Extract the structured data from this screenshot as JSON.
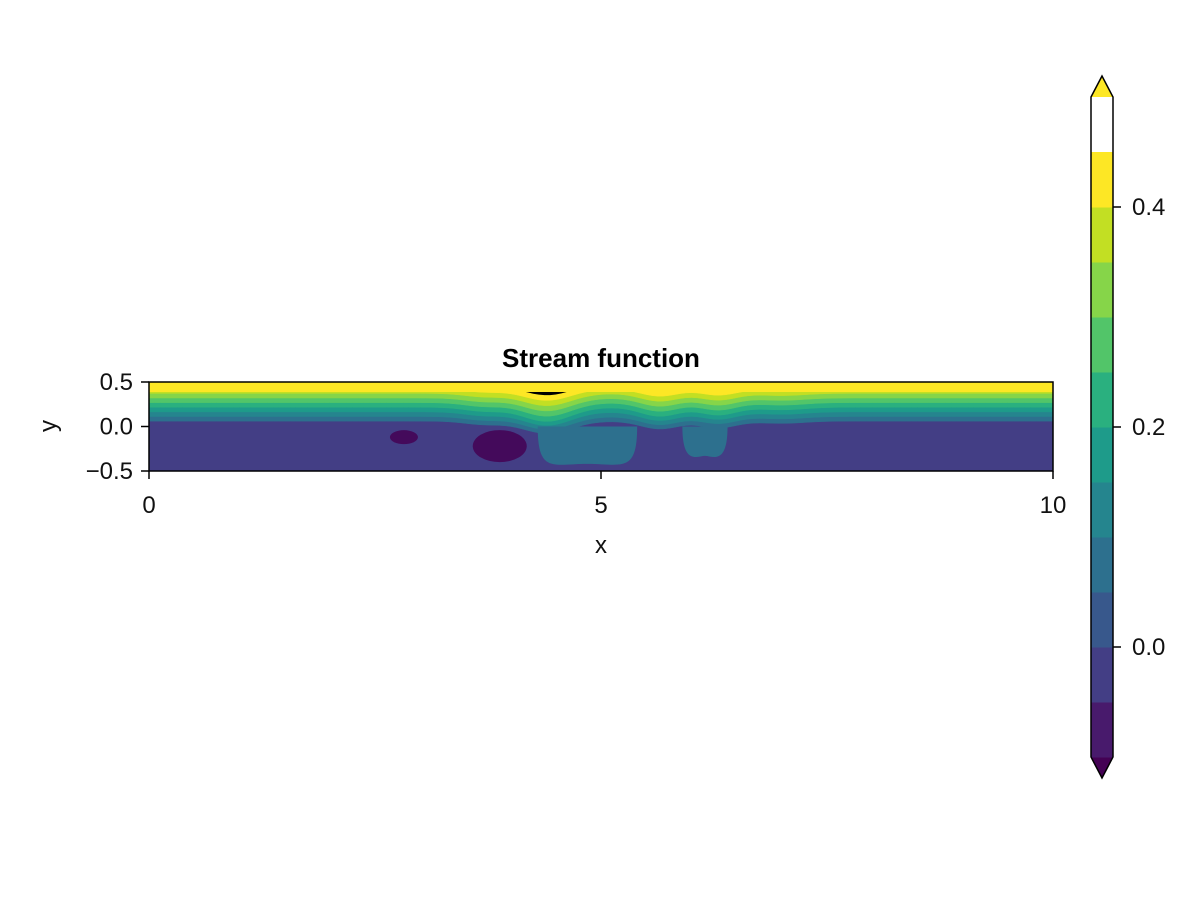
{
  "chart_data": {
    "type": "contourf",
    "title": "Stream function",
    "xlabel": "x",
    "ylabel": "y",
    "xlim": [
      0,
      10
    ],
    "ylim": [
      -0.5,
      0.5
    ],
    "x_ticks": [
      0,
      5,
      10
    ],
    "x_tick_labels": [
      "0",
      "5",
      "10"
    ],
    "y_ticks": [
      -0.5,
      0.0,
      0.5
    ],
    "y_tick_labels": [
      "−0.5",
      "0.0",
      "0.5"
    ],
    "grid": false,
    "colormap": "viridis",
    "colorbar": {
      "range": [
        -0.1,
        0.5
      ],
      "levels": [
        -0.1,
        -0.05,
        0.0,
        0.05,
        0.1,
        0.15,
        0.2,
        0.25,
        0.3,
        0.35,
        0.4,
        0.45,
        0.5
      ],
      "extend": "both",
      "ticks": [
        0.0,
        0.2,
        0.4
      ],
      "tick_labels": [
        "0.0",
        "0.2",
        "0.4"
      ],
      "colors": [
        "#481a6c",
        "#433e85",
        "#38588c",
        "#2d708e",
        "#25858e",
        "#1e9b8a",
        "#2ab07f",
        "#52c569",
        "#86d549",
        "#c2df23",
        "#fde725"
      ],
      "under_color": "#440154",
      "over_color": "#fde725"
    },
    "features": {
      "lower_region_level": -0.05,
      "top_region_level": 0.45,
      "closed_vortices_x": [
        2.8,
        3.8
      ],
      "channel_dip_x": [
        4.4,
        5.7,
        6.3
      ]
    }
  }
}
